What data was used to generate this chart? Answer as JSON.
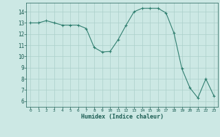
{
  "x": [
    0,
    1,
    2,
    3,
    4,
    5,
    6,
    7,
    8,
    9,
    10,
    11,
    12,
    13,
    14,
    15,
    16,
    17,
    18,
    19,
    20,
    21,
    22,
    23
  ],
  "y": [
    13.0,
    13.0,
    13.2,
    13.0,
    12.8,
    12.8,
    12.8,
    12.5,
    10.8,
    10.4,
    10.45,
    11.5,
    12.8,
    14.0,
    14.3,
    14.3,
    14.3,
    13.9,
    12.1,
    8.9,
    7.2,
    6.3,
    8.0,
    6.5
  ],
  "line_color": "#2e7d6e",
  "marker": "+",
  "marker_color": "#2e7d6e",
  "bg_color": "#cce8e4",
  "grid_color": "#aacfca",
  "xlabel": "Humidex (Indice chaleur)",
  "xlabel_color": "#1a5c52",
  "tick_color": "#1a5c52",
  "xlim": [
    -0.5,
    23.5
  ],
  "ylim": [
    5.5,
    14.8
  ],
  "yticks": [
    6,
    7,
    8,
    9,
    10,
    11,
    12,
    13,
    14
  ],
  "xticks": [
    0,
    1,
    2,
    3,
    4,
    5,
    6,
    7,
    8,
    9,
    10,
    11,
    12,
    13,
    14,
    15,
    16,
    17,
    18,
    19,
    20,
    21,
    22,
    23
  ]
}
